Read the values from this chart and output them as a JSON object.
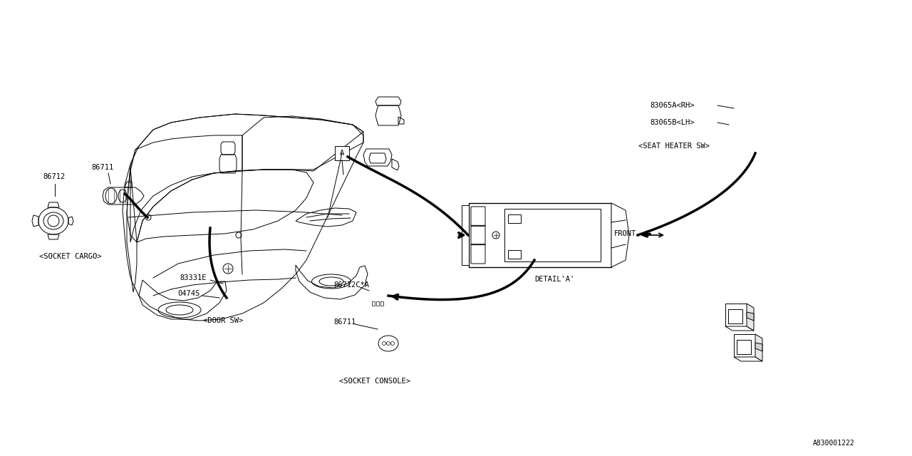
{
  "bg_color": "#ffffff",
  "line_color": "#000000",
  "part_number": "A830001222",
  "labels": {
    "86711_left": "86711",
    "86712": "86712",
    "socket_cargo": "<SOCKET CARGO>",
    "83331E": "83331E",
    "0474S": "0474S",
    "door_sw": "<DOOR SW>",
    "86712C_A": "86712C*A",
    "86711_bottom": "86711",
    "socket_console": "<SOCKET CONSOLE>",
    "83065A": "83065A<RH>",
    "83065B": "83065B<LH>",
    "seat_heater": "<SEAT HEATER SW>",
    "detail_a": "DETAIL'A'",
    "front": "FRONT",
    "label_a": "A"
  },
  "font_size": 7.5,
  "diagram_font": "monospace",
  "lw_thin": 0.7,
  "lw_thick": 2.5
}
